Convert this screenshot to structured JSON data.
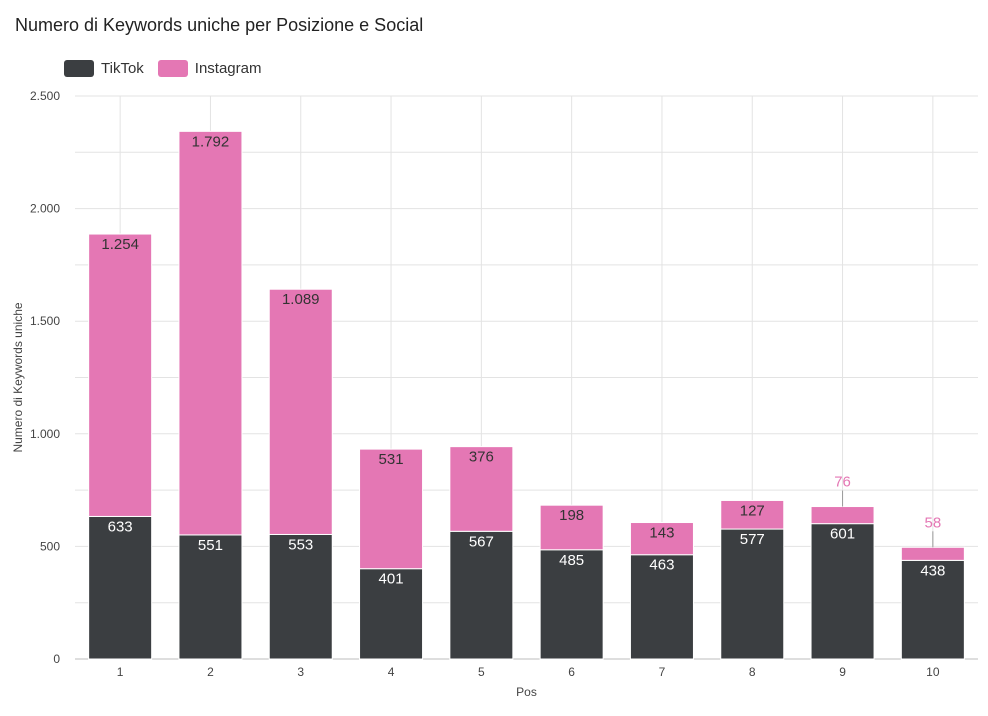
{
  "chart_data": {
    "type": "bar",
    "stacked": true,
    "title": "Numero di Keywords uniche per Posizione e Social",
    "xlabel": "Pos",
    "ylabel": "Numero di Keywords uniche",
    "ylim": [
      0,
      2500
    ],
    "yticks": [
      0,
      500,
      1000,
      1500,
      2000,
      2500
    ],
    "ytick_labels": [
      "0",
      "500",
      "1.000",
      "1.500",
      "2.000",
      "2.500"
    ],
    "categories": [
      "1",
      "2",
      "3",
      "4",
      "5",
      "6",
      "7",
      "8",
      "9",
      "10"
    ],
    "grid": true,
    "legend_position": "top-left",
    "series": [
      {
        "name": "TikTok",
        "color": "#3b3e41",
        "values": [
          633,
          551,
          553,
          401,
          567,
          485,
          463,
          577,
          601,
          438
        ],
        "labels": [
          "633",
          "551",
          "553",
          "401",
          "567",
          "485",
          "463",
          "577",
          "601",
          "438"
        ]
      },
      {
        "name": "Instagram",
        "color": "#e477b4",
        "values": [
          1254,
          1792,
          1089,
          531,
          376,
          198,
          143,
          127,
          76,
          58
        ],
        "labels": [
          "1.254",
          "1.792",
          "1.089",
          "531",
          "376",
          "198",
          "143",
          "127",
          "76",
          "58"
        ]
      }
    ]
  }
}
